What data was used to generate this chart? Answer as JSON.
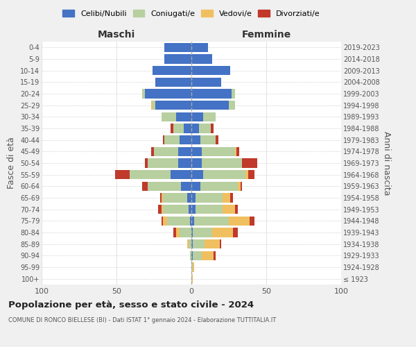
{
  "age_groups": [
    "100+",
    "95-99",
    "90-94",
    "85-89",
    "80-84",
    "75-79",
    "70-74",
    "65-69",
    "60-64",
    "55-59",
    "50-54",
    "45-49",
    "40-44",
    "35-39",
    "30-34",
    "25-29",
    "20-24",
    "15-19",
    "10-14",
    "5-9",
    "0-4"
  ],
  "birth_years": [
    "≤ 1923",
    "1924-1928",
    "1929-1933",
    "1934-1938",
    "1939-1943",
    "1944-1948",
    "1949-1953",
    "1954-1958",
    "1959-1963",
    "1964-1968",
    "1969-1973",
    "1974-1978",
    "1979-1983",
    "1984-1988",
    "1989-1993",
    "1994-1998",
    "1999-2003",
    "2004-2008",
    "2009-2013",
    "2014-2018",
    "2019-2023"
  ],
  "colors": {
    "celibi": "#4472c4",
    "coniugati": "#b8cfa0",
    "vedovi": "#f0c060",
    "divorziati": "#c0392b"
  },
  "maschi": {
    "celibi": [
      0,
      0,
      0,
      0,
      0,
      1,
      2,
      3,
      7,
      14,
      9,
      9,
      8,
      5,
      10,
      24,
      31,
      24,
      26,
      18,
      18
    ],
    "coniugati": [
      0,
      0,
      1,
      2,
      8,
      15,
      17,
      16,
      22,
      27,
      20,
      16,
      10,
      7,
      10,
      2,
      2,
      0,
      0,
      0,
      0
    ],
    "vedovi": [
      0,
      0,
      0,
      1,
      2,
      3,
      1,
      1,
      0,
      0,
      0,
      0,
      0,
      0,
      0,
      1,
      0,
      0,
      0,
      0,
      0
    ],
    "divorziati": [
      0,
      0,
      0,
      0,
      2,
      1,
      2,
      1,
      4,
      10,
      2,
      2,
      1,
      2,
      0,
      0,
      0,
      0,
      0,
      0,
      0
    ]
  },
  "femmine": {
    "celibi": [
      0,
      0,
      1,
      1,
      1,
      2,
      3,
      3,
      6,
      8,
      7,
      7,
      6,
      5,
      8,
      25,
      27,
      20,
      26,
      14,
      11
    ],
    "coniugati": [
      0,
      1,
      6,
      8,
      13,
      23,
      18,
      18,
      25,
      28,
      27,
      22,
      10,
      8,
      8,
      4,
      2,
      0,
      0,
      0,
      0
    ],
    "vedovi": [
      1,
      1,
      8,
      10,
      14,
      14,
      8,
      5,
      2,
      2,
      0,
      1,
      0,
      0,
      0,
      0,
      0,
      0,
      0,
      0,
      0
    ],
    "divorziati": [
      0,
      0,
      1,
      1,
      3,
      3,
      2,
      2,
      1,
      4,
      10,
      2,
      2,
      2,
      0,
      0,
      0,
      0,
      0,
      0,
      0
    ]
  },
  "xlim": 100,
  "title_main": "Popolazione per età, sesso e stato civile - 2024",
  "title_sub": "COMUNE DI RONCO BIELLESE (BI) - Dati ISTAT 1° gennaio 2024 - Elaborazione TUTTITALIA.IT",
  "ylabel": "Fasce di età",
  "ylabel_right": "Anni di nascita",
  "xlabel_maschi": "Maschi",
  "xlabel_femmine": "Femmine",
  "legend_labels": [
    "Celibi/Nubili",
    "Coniugati/e",
    "Vedovi/e",
    "Divorziati/e"
  ],
  "bg_color": "#f0f0f0",
  "plot_bg": "#ffffff",
  "grid_color": "#cccccc"
}
